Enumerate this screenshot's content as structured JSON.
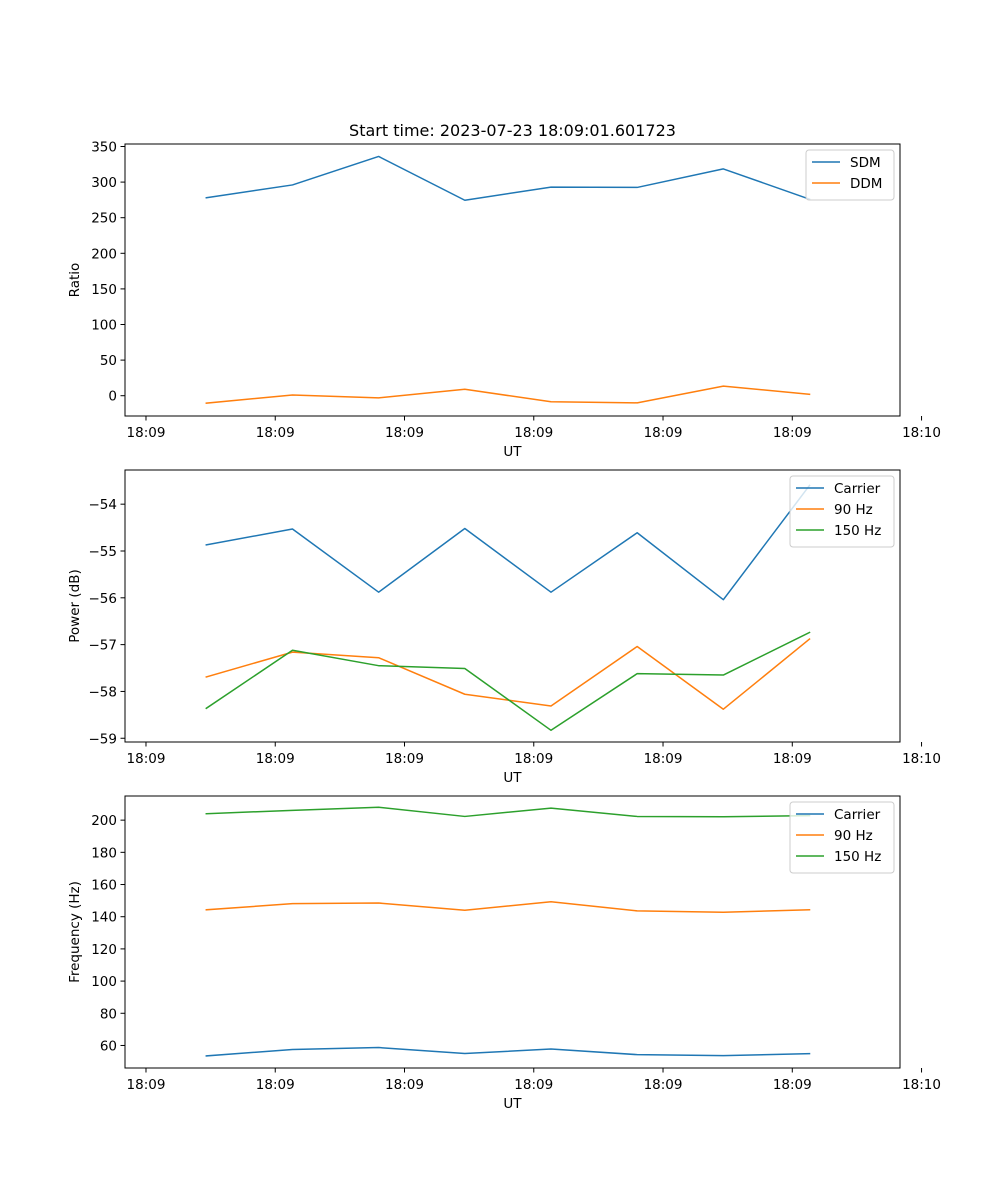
{
  "figure": {
    "title": "Start time: 2023-07-23 18:09:01.601723"
  },
  "chart_data": [
    {
      "type": "line",
      "title": "Start time: 2023-07-23 18:09:01.601723",
      "xlabel": "UT",
      "ylabel": "Ratio",
      "x": [
        1,
        2,
        3,
        4,
        5,
        6,
        7,
        8
      ],
      "xlim": [
        0.0565,
        9.05
      ],
      "xticks": [
        0.3,
        1.8,
        3.3,
        4.8,
        6.3,
        7.8,
        9.3
      ],
      "xticklabels": [
        "18:09",
        "18:09",
        "18:09",
        "18:09",
        "18:09",
        "18:09",
        "18:10"
      ],
      "ylim": [
        -28.5,
        353.5
      ],
      "yticks": [
        0,
        50,
        100,
        150,
        200,
        250,
        300,
        350
      ],
      "yticklabels": [
        "0",
        "50",
        "100",
        "150",
        "200",
        "250",
        "300",
        "350"
      ],
      "legend": "top-right",
      "series": [
        {
          "name": "SDM",
          "color": "#1f77b4",
          "values": [
            278,
            296,
            336,
            274.5,
            293,
            292.5,
            318.5,
            276
          ]
        },
        {
          "name": "DDM",
          "color": "#ff7f0e",
          "values": [
            -10.5,
            1,
            -3,
            9,
            -8.5,
            -10,
            13.5,
            2
          ]
        }
      ]
    },
    {
      "type": "line",
      "xlabel": "UT",
      "ylabel": "Power (dB)",
      "x": [
        1,
        2,
        3,
        4,
        5,
        6,
        7,
        8
      ],
      "xlim": [
        0.0565,
        9.05
      ],
      "xticks": [
        0.3,
        1.8,
        3.3,
        4.8,
        6.3,
        7.8,
        9.3
      ],
      "xticklabels": [
        "18:09",
        "18:09",
        "18:09",
        "18:09",
        "18:09",
        "18:09",
        "18:10"
      ],
      "ylim": [
        -59.08,
        -53.27
      ],
      "yticks": [
        -59,
        -58,
        -57,
        -56,
        -55,
        -54
      ],
      "yticklabels": [
        "−59",
        "−58",
        "−57",
        "−56",
        "−55",
        "−54"
      ],
      "legend": "top-right",
      "series": [
        {
          "name": "Carrier",
          "color": "#1f77b4",
          "values": [
            -54.87,
            -54.53,
            -55.88,
            -54.52,
            -55.88,
            -54.61,
            -56.04,
            -53.6
          ]
        },
        {
          "name": "90 Hz",
          "color": "#ff7f0e",
          "values": [
            -57.69,
            -57.16,
            -57.28,
            -58.06,
            -58.31,
            -57.04,
            -58.38,
            -56.88
          ]
        },
        {
          "name": "150 Hz",
          "color": "#2ca02c",
          "values": [
            -58.36,
            -57.12,
            -57.45,
            -57.51,
            -58.83,
            -57.62,
            -57.65,
            -56.74
          ]
        }
      ]
    },
    {
      "type": "line",
      "xlabel": "UT",
      "ylabel": "Frequency (Hz)",
      "x": [
        1,
        2,
        3,
        4,
        5,
        6,
        7,
        8
      ],
      "xlim": [
        0.0565,
        9.05
      ],
      "xticks": [
        0.3,
        1.8,
        3.3,
        4.8,
        6.3,
        7.8,
        9.3
      ],
      "xticklabels": [
        "18:09",
        "18:09",
        "18:09",
        "18:09",
        "18:09",
        "18:09",
        "18:10"
      ],
      "ylim": [
        46,
        215
      ],
      "yticks": [
        60,
        80,
        100,
        120,
        140,
        160,
        180,
        200
      ],
      "yticklabels": [
        "60",
        "80",
        "100",
        "120",
        "140",
        "160",
        "180",
        "200"
      ],
      "legend": "top-right",
      "series": [
        {
          "name": "Carrier",
          "color": "#1f77b4",
          "values": [
            53.5,
            57.5,
            58.7,
            55,
            57.8,
            54.3,
            53.7,
            54.9
          ]
        },
        {
          "name": "90 Hz",
          "color": "#ff7f0e",
          "values": [
            144.3,
            148.1,
            148.5,
            144,
            149.3,
            143.6,
            142.8,
            144.3
          ]
        },
        {
          "name": "150 Hz",
          "color": "#2ca02c",
          "values": [
            204,
            206.1,
            208,
            202.3,
            207.5,
            202.3,
            202.1,
            202.8
          ]
        }
      ]
    }
  ]
}
